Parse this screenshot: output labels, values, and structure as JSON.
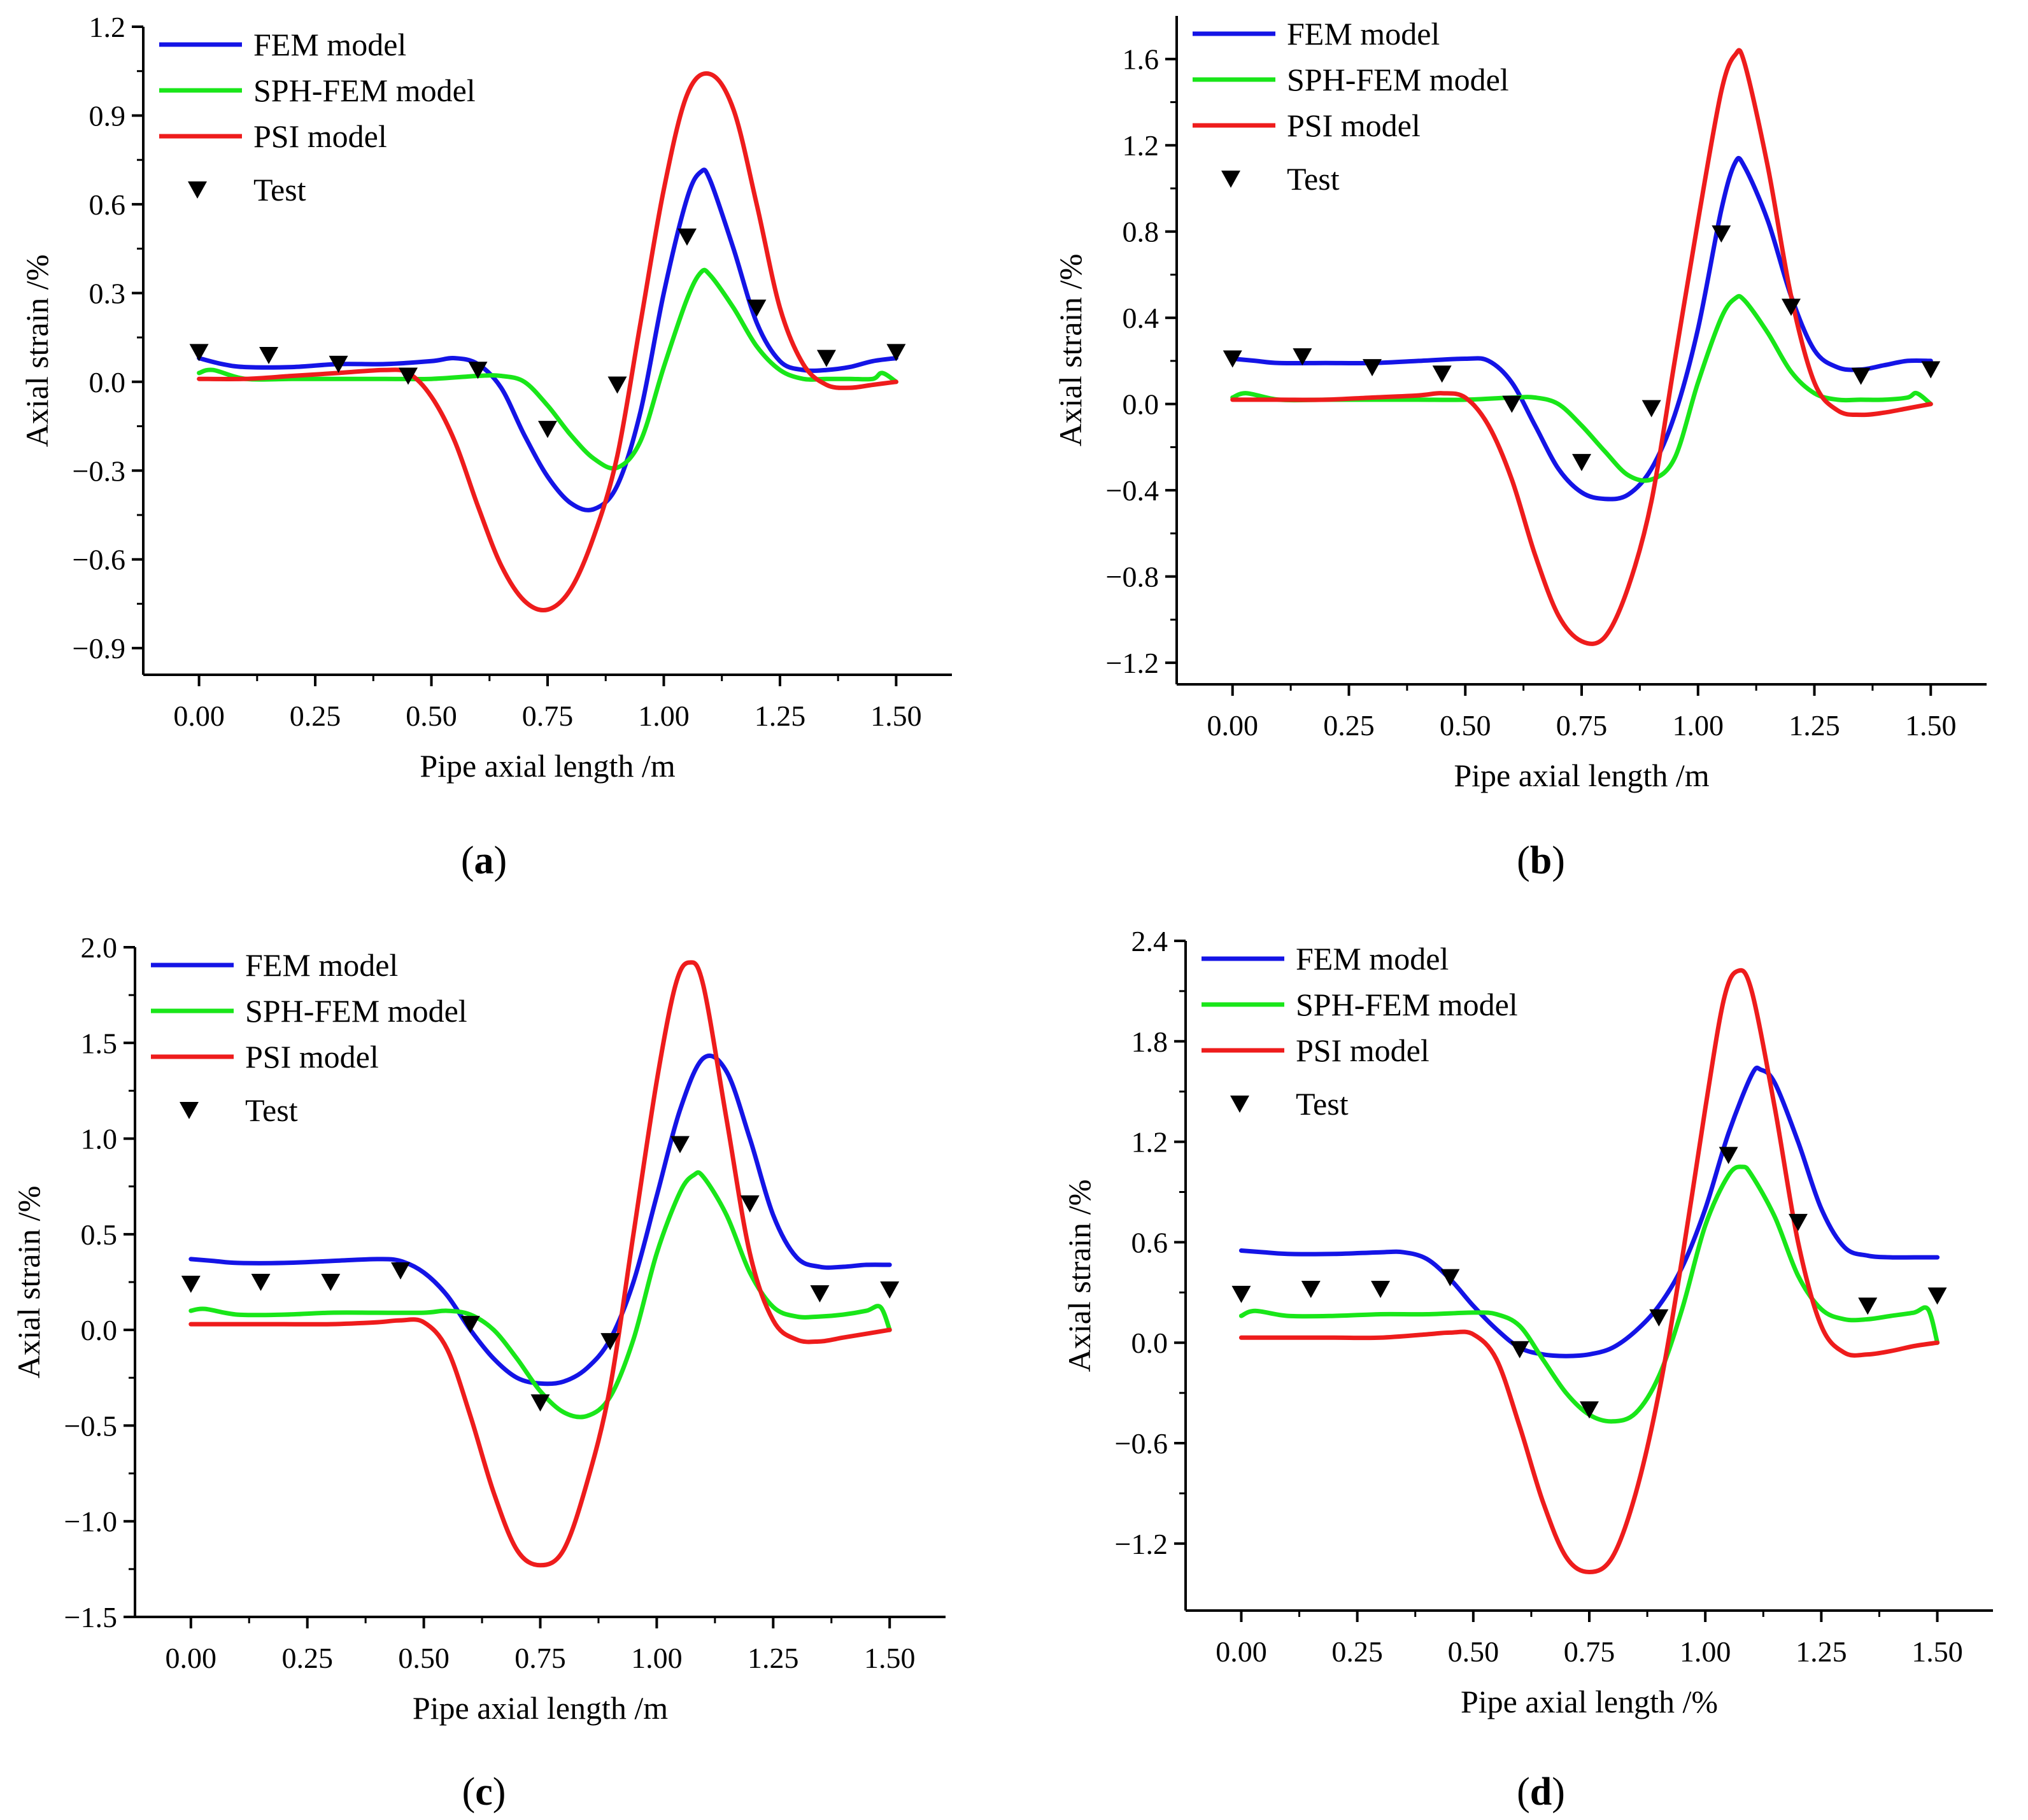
{
  "figure": {
    "colors": {
      "fem": "#1414e6",
      "sph": "#19e619",
      "psi": "#ee1c1c",
      "test": "#000000",
      "axis": "#000000"
    }
  },
  "chart_data": [
    {
      "type": "line",
      "panel": "(a)",
      "caption_letter": "a",
      "xlabel": "Pipe axial length /m",
      "ylabel": "Axial strain /%",
      "xlim": [
        -0.12,
        1.62
      ],
      "ylim": [
        -0.99,
        1.2
      ],
      "xticks": [
        0.0,
        0.25,
        0.5,
        0.75,
        1.0,
        1.25,
        1.5
      ],
      "xtick_labels": [
        "0.00",
        "0.25",
        "0.50",
        "0.75",
        "1.00",
        "1.25",
        "1.50"
      ],
      "yticks": [
        -0.9,
        -0.6,
        -0.3,
        0.0,
        0.3,
        0.6,
        0.9,
        1.2
      ],
      "ytick_labels": [
        "−0.9",
        "−0.6",
        "−0.3",
        "0.0",
        "0.3",
        "0.6",
        "0.9",
        "1.2"
      ],
      "legend_position": "top-left",
      "series": [
        {
          "name": "FEM model",
          "style": "line",
          "color": "#1414e6",
          "x": [
            0.0,
            0.05,
            0.1,
            0.2,
            0.3,
            0.4,
            0.5,
            0.55,
            0.6,
            0.65,
            0.7,
            0.75,
            0.8,
            0.85,
            0.9,
            0.95,
            1.0,
            1.05,
            1.08,
            1.1,
            1.15,
            1.2,
            1.25,
            1.3,
            1.35,
            1.4,
            1.45,
            1.5
          ],
          "y": [
            0.08,
            0.06,
            0.05,
            0.05,
            0.06,
            0.06,
            0.07,
            0.08,
            0.06,
            -0.02,
            -0.18,
            -0.32,
            -0.41,
            -0.43,
            -0.35,
            -0.1,
            0.3,
            0.62,
            0.71,
            0.68,
            0.45,
            0.2,
            0.07,
            0.04,
            0.04,
            0.05,
            0.07,
            0.08
          ]
        },
        {
          "name": "SPH-FEM model",
          "style": "line",
          "color": "#19e619",
          "x": [
            0.0,
            0.03,
            0.1,
            0.2,
            0.3,
            0.4,
            0.5,
            0.6,
            0.65,
            0.7,
            0.75,
            0.8,
            0.85,
            0.9,
            0.95,
            1.0,
            1.05,
            1.08,
            1.1,
            1.15,
            1.2,
            1.25,
            1.3,
            1.35,
            1.4,
            1.45,
            1.47,
            1.5
          ],
          "y": [
            0.03,
            0.04,
            0.01,
            0.01,
            0.01,
            0.01,
            0.01,
            0.02,
            0.02,
            0.0,
            -0.08,
            -0.18,
            -0.26,
            -0.29,
            -0.2,
            0.05,
            0.28,
            0.37,
            0.36,
            0.25,
            0.12,
            0.04,
            0.01,
            0.01,
            0.01,
            0.01,
            0.03,
            0.0
          ]
        },
        {
          "name": "PSI model",
          "style": "line",
          "color": "#ee1c1c",
          "x": [
            0.0,
            0.1,
            0.2,
            0.3,
            0.4,
            0.45,
            0.5,
            0.55,
            0.6,
            0.65,
            0.7,
            0.75,
            0.8,
            0.85,
            0.9,
            0.95,
            1.0,
            1.05,
            1.1,
            1.15,
            1.2,
            1.25,
            1.3,
            1.35,
            1.4,
            1.45,
            1.5
          ],
          "y": [
            0.01,
            0.01,
            0.02,
            0.03,
            0.04,
            0.03,
            -0.05,
            -0.2,
            -0.42,
            -0.62,
            -0.74,
            -0.77,
            -0.7,
            -0.52,
            -0.25,
            0.2,
            0.65,
            0.97,
            1.04,
            0.92,
            0.6,
            0.25,
            0.06,
            -0.01,
            -0.02,
            -0.01,
            0.0
          ]
        },
        {
          "name": "Test",
          "style": "marker",
          "color": "#000000",
          "x": [
            0.0,
            0.15,
            0.3,
            0.45,
            0.6,
            0.75,
            0.9,
            1.05,
            1.2,
            1.35,
            1.5
          ],
          "y": [
            0.1,
            0.09,
            0.06,
            0.02,
            0.04,
            -0.16,
            -0.01,
            0.49,
            0.25,
            0.08,
            0.1
          ]
        }
      ]
    },
    {
      "type": "line",
      "panel": "(b)",
      "caption_letter": "b",
      "xlabel": "Pipe axial length /m",
      "ylabel": "Axial strain /%",
      "xlim": [
        -0.12,
        1.62
      ],
      "ylim": [
        -1.3,
        1.8
      ],
      "xticks": [
        0.0,
        0.25,
        0.5,
        0.75,
        1.0,
        1.25,
        1.5
      ],
      "xtick_labels": [
        "0.00",
        "0.25",
        "0.50",
        "0.75",
        "1.00",
        "1.25",
        "1.50"
      ],
      "yticks": [
        -1.2,
        -0.8,
        -0.4,
        0.0,
        0.4,
        0.8,
        1.2,
        1.6
      ],
      "ytick_labels": [
        "−1.2",
        "−0.8",
        "−0.4",
        "0.0",
        "0.4",
        "0.8",
        "1.2",
        "1.6"
      ],
      "legend_position": "top-left",
      "series": [
        {
          "name": "FEM model",
          "style": "line",
          "color": "#1414e6",
          "x": [
            0.0,
            0.05,
            0.1,
            0.2,
            0.3,
            0.4,
            0.5,
            0.55,
            0.6,
            0.65,
            0.7,
            0.75,
            0.8,
            0.85,
            0.9,
            0.95,
            1.0,
            1.05,
            1.08,
            1.1,
            1.15,
            1.2,
            1.25,
            1.3,
            1.35,
            1.4,
            1.45,
            1.5
          ],
          "y": [
            0.21,
            0.2,
            0.19,
            0.19,
            0.19,
            0.2,
            0.21,
            0.2,
            0.1,
            -0.1,
            -0.3,
            -0.41,
            -0.44,
            -0.42,
            -0.3,
            -0.05,
            0.35,
            0.9,
            1.12,
            1.1,
            0.85,
            0.5,
            0.25,
            0.17,
            0.16,
            0.18,
            0.2,
            0.2
          ]
        },
        {
          "name": "SPH-FEM model",
          "style": "line",
          "color": "#19e619",
          "x": [
            0.0,
            0.03,
            0.1,
            0.2,
            0.3,
            0.4,
            0.5,
            0.6,
            0.65,
            0.7,
            0.75,
            0.8,
            0.85,
            0.9,
            0.95,
            1.0,
            1.05,
            1.08,
            1.1,
            1.15,
            1.2,
            1.25,
            1.3,
            1.35,
            1.4,
            1.45,
            1.47,
            1.5
          ],
          "y": [
            0.03,
            0.05,
            0.02,
            0.02,
            0.02,
            0.02,
            0.02,
            0.03,
            0.03,
            0.0,
            -0.1,
            -0.22,
            -0.33,
            -0.35,
            -0.25,
            0.1,
            0.4,
            0.49,
            0.48,
            0.33,
            0.15,
            0.05,
            0.02,
            0.02,
            0.02,
            0.03,
            0.05,
            0.0
          ]
        },
        {
          "name": "PSI model",
          "style": "line",
          "color": "#ee1c1c",
          "x": [
            0.0,
            0.1,
            0.2,
            0.3,
            0.4,
            0.45,
            0.5,
            0.55,
            0.6,
            0.65,
            0.7,
            0.75,
            0.8,
            0.85,
            0.9,
            0.95,
            1.0,
            1.05,
            1.08,
            1.1,
            1.15,
            1.2,
            1.25,
            1.3,
            1.35,
            1.4,
            1.45,
            1.5
          ],
          "y": [
            0.02,
            0.02,
            0.02,
            0.03,
            0.04,
            0.05,
            0.03,
            -0.1,
            -0.35,
            -0.7,
            -0.98,
            -1.1,
            -1.08,
            -0.85,
            -0.45,
            0.2,
            0.85,
            1.45,
            1.62,
            1.58,
            1.1,
            0.5,
            0.1,
            -0.03,
            -0.05,
            -0.04,
            -0.02,
            0.0
          ]
        },
        {
          "name": "Test",
          "style": "marker",
          "color": "#000000",
          "x": [
            0.0,
            0.15,
            0.3,
            0.45,
            0.6,
            0.75,
            0.9,
            1.05,
            1.2,
            1.35,
            1.5
          ],
          "y": [
            0.21,
            0.22,
            0.17,
            0.14,
            0.0,
            -0.27,
            -0.02,
            0.79,
            0.45,
            0.13,
            0.16
          ]
        }
      ]
    },
    {
      "type": "line",
      "panel": "(c)",
      "caption_letter": "c",
      "xlabel": "Pipe axial length /m",
      "ylabel": "Axial strain /%",
      "xlim": [
        -0.12,
        1.62
      ],
      "ylim": [
        -1.5,
        2.0
      ],
      "xticks": [
        0.0,
        0.25,
        0.5,
        0.75,
        1.0,
        1.25,
        1.5
      ],
      "xtick_labels": [
        "0.00",
        "0.25",
        "0.50",
        "0.75",
        "1.00",
        "1.25",
        "1.50"
      ],
      "yticks": [
        -1.5,
        -1.0,
        -0.5,
        0.0,
        0.5,
        1.0,
        1.5,
        2.0
      ],
      "ytick_labels": [
        "−1.5",
        "−1.0",
        "−0.5",
        "0.0",
        "0.5",
        "1.0",
        "1.5",
        "2.0"
      ],
      "legend_position": "top-left",
      "series": [
        {
          "name": "FEM model",
          "style": "line",
          "color": "#1414e6",
          "x": [
            0.0,
            0.05,
            0.1,
            0.2,
            0.3,
            0.4,
            0.45,
            0.5,
            0.55,
            0.6,
            0.65,
            0.7,
            0.75,
            0.8,
            0.85,
            0.9,
            0.95,
            1.0,
            1.05,
            1.1,
            1.15,
            1.2,
            1.25,
            1.3,
            1.35,
            1.4,
            1.45,
            1.5
          ],
          "y": [
            0.37,
            0.36,
            0.35,
            0.35,
            0.36,
            0.37,
            0.36,
            0.3,
            0.18,
            0.0,
            -0.15,
            -0.25,
            -0.28,
            -0.27,
            -0.2,
            -0.05,
            0.25,
            0.7,
            1.15,
            1.42,
            1.35,
            1.0,
            0.6,
            0.38,
            0.33,
            0.33,
            0.34,
            0.34
          ]
        },
        {
          "name": "SPH-FEM model",
          "style": "line",
          "color": "#19e619",
          "x": [
            0.0,
            0.03,
            0.1,
            0.2,
            0.3,
            0.4,
            0.5,
            0.55,
            0.6,
            0.65,
            0.7,
            0.75,
            0.8,
            0.85,
            0.9,
            0.95,
            1.0,
            1.05,
            1.08,
            1.1,
            1.15,
            1.2,
            1.25,
            1.3,
            1.35,
            1.4,
            1.45,
            1.48,
            1.5
          ],
          "y": [
            0.1,
            0.11,
            0.08,
            0.08,
            0.09,
            0.09,
            0.09,
            0.1,
            0.08,
            0.0,
            -0.15,
            -0.32,
            -0.43,
            -0.45,
            -0.35,
            -0.05,
            0.4,
            0.72,
            0.81,
            0.8,
            0.6,
            0.3,
            0.12,
            0.07,
            0.07,
            0.08,
            0.1,
            0.12,
            0.0
          ]
        },
        {
          "name": "PSI model",
          "style": "line",
          "color": "#ee1c1c",
          "x": [
            0.0,
            0.1,
            0.2,
            0.3,
            0.4,
            0.45,
            0.5,
            0.55,
            0.6,
            0.65,
            0.7,
            0.75,
            0.8,
            0.85,
            0.9,
            0.95,
            1.0,
            1.04,
            1.07,
            1.1,
            1.15,
            1.2,
            1.25,
            1.3,
            1.35,
            1.4,
            1.45,
            1.5
          ],
          "y": [
            0.03,
            0.03,
            0.03,
            0.03,
            0.04,
            0.05,
            0.04,
            -0.1,
            -0.45,
            -0.85,
            -1.15,
            -1.23,
            -1.15,
            -0.8,
            -0.3,
            0.5,
            1.3,
            1.8,
            1.92,
            1.8,
            1.1,
            0.4,
            0.05,
            -0.05,
            -0.06,
            -0.04,
            -0.02,
            0.0
          ]
        },
        {
          "name": "Test",
          "style": "marker",
          "color": "#000000",
          "x": [
            0.0,
            0.15,
            0.3,
            0.45,
            0.6,
            0.75,
            0.9,
            1.05,
            1.2,
            1.35,
            1.5
          ],
          "y": [
            0.24,
            0.25,
            0.25,
            0.31,
            0.03,
            -0.38,
            -0.06,
            0.97,
            0.66,
            0.19,
            0.21
          ]
        }
      ]
    },
    {
      "type": "line",
      "panel": "(d)",
      "caption_letter": "d",
      "xlabel": "Pipe axial length /%",
      "ylabel": "Axial strain /%",
      "xlim": [
        -0.12,
        1.62
      ],
      "ylim": [
        -1.6,
        2.4
      ],
      "xticks": [
        0.0,
        0.25,
        0.5,
        0.75,
        1.0,
        1.25,
        1.5
      ],
      "xtick_labels": [
        "0.00",
        "0.25",
        "0.50",
        "0.75",
        "1.00",
        "1.25",
        "1.50"
      ],
      "yticks": [
        -1.2,
        -0.6,
        0.0,
        0.6,
        1.2,
        1.8,
        2.4
      ],
      "ytick_labels": [
        "−1.2",
        "−0.6",
        "0.0",
        "0.6",
        "1.2",
        "1.8",
        "2.4"
      ],
      "legend_position": "top-left",
      "series": [
        {
          "name": "FEM model",
          "style": "line",
          "color": "#1414e6",
          "x": [
            0.0,
            0.05,
            0.1,
            0.2,
            0.3,
            0.35,
            0.4,
            0.45,
            0.5,
            0.55,
            0.6,
            0.65,
            0.7,
            0.75,
            0.8,
            0.85,
            0.9,
            0.95,
            1.0,
            1.05,
            1.1,
            1.12,
            1.15,
            1.2,
            1.25,
            1.3,
            1.35,
            1.4,
            1.45,
            1.5
          ],
          "y": [
            0.55,
            0.54,
            0.53,
            0.53,
            0.54,
            0.54,
            0.5,
            0.38,
            0.22,
            0.08,
            -0.03,
            -0.07,
            -0.08,
            -0.07,
            -0.03,
            0.07,
            0.22,
            0.45,
            0.8,
            1.25,
            1.6,
            1.63,
            1.55,
            1.2,
            0.8,
            0.57,
            0.52,
            0.51,
            0.51,
            0.51
          ]
        },
        {
          "name": "SPH-FEM model",
          "style": "line",
          "color": "#19e619",
          "x": [
            0.0,
            0.03,
            0.1,
            0.2,
            0.3,
            0.4,
            0.5,
            0.55,
            0.6,
            0.65,
            0.7,
            0.75,
            0.8,
            0.85,
            0.9,
            0.95,
            1.0,
            1.05,
            1.08,
            1.1,
            1.15,
            1.2,
            1.25,
            1.3,
            1.35,
            1.4,
            1.45,
            1.48,
            1.5
          ],
          "y": [
            0.16,
            0.19,
            0.16,
            0.16,
            0.17,
            0.17,
            0.18,
            0.17,
            0.1,
            -0.1,
            -0.3,
            -0.43,
            -0.47,
            -0.42,
            -0.2,
            0.2,
            0.7,
            1.0,
            1.05,
            1.0,
            0.75,
            0.4,
            0.2,
            0.14,
            0.14,
            0.16,
            0.18,
            0.2,
            0.0
          ]
        },
        {
          "name": "PSI model",
          "style": "line",
          "color": "#ee1c1c",
          "x": [
            0.0,
            0.1,
            0.2,
            0.3,
            0.4,
            0.45,
            0.5,
            0.55,
            0.6,
            0.65,
            0.7,
            0.75,
            0.8,
            0.85,
            0.9,
            0.95,
            1.0,
            1.04,
            1.07,
            1.1,
            1.15,
            1.2,
            1.25,
            1.3,
            1.35,
            1.4,
            1.45,
            1.5
          ],
          "y": [
            0.03,
            0.03,
            0.03,
            0.03,
            0.05,
            0.06,
            0.05,
            -0.1,
            -0.5,
            -0.95,
            -1.28,
            -1.37,
            -1.28,
            -0.9,
            -0.3,
            0.5,
            1.4,
            2.05,
            2.22,
            2.1,
            1.4,
            0.6,
            0.1,
            -0.06,
            -0.07,
            -0.05,
            -0.02,
            0.0
          ]
        },
        {
          "name": "Test",
          "style": "marker",
          "color": "#000000",
          "x": [
            0.0,
            0.15,
            0.3,
            0.45,
            0.6,
            0.75,
            0.9,
            1.05,
            1.2,
            1.35,
            1.5
          ],
          "y": [
            0.29,
            0.32,
            0.32,
            0.39,
            -0.04,
            -0.4,
            0.15,
            1.12,
            0.72,
            0.22,
            0.28
          ]
        }
      ]
    }
  ]
}
